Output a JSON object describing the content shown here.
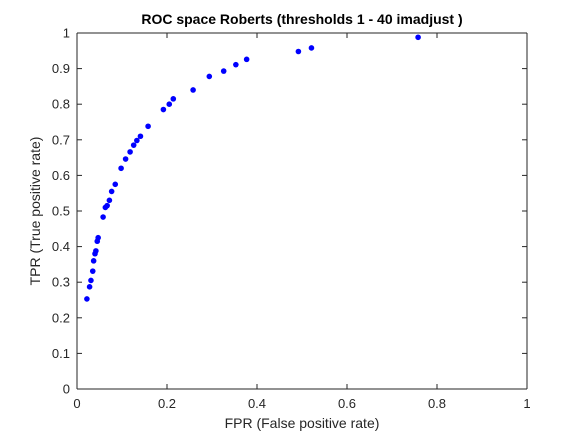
{
  "chart_data": {
    "type": "scatter",
    "title": "ROC space Roberts (thresholds 1 - 40  imadjust )",
    "xlabel": "FPR (False positive rate)",
    "ylabel": "TPR (True positive rate)",
    "xlim": [
      0,
      1
    ],
    "ylim": [
      0,
      1
    ],
    "xticks": [
      "0",
      "0.2",
      "0.4",
      "0.6",
      "0.8",
      "1"
    ],
    "yticks": [
      "0",
      "0.1",
      "0.2",
      "0.3",
      "0.4",
      "0.5",
      "0.6",
      "0.7",
      "0.8",
      "0.9",
      "1"
    ],
    "grid": false,
    "marker_color": "#0000ff",
    "series": [
      {
        "x": [
          0.022,
          0.028,
          0.031,
          0.035,
          0.037,
          0.04,
          0.042,
          0.045,
          0.047,
          0.058,
          0.063,
          0.067,
          0.072,
          0.077,
          0.085,
          0.098,
          0.108,
          0.118,
          0.126,
          0.133,
          0.141,
          0.158,
          0.192,
          0.205,
          0.214,
          0.258,
          0.294,
          0.326,
          0.353,
          0.377,
          0.492,
          0.521,
          0.758
        ],
        "y": [
          0.253,
          0.287,
          0.305,
          0.331,
          0.36,
          0.38,
          0.388,
          0.415,
          0.425,
          0.483,
          0.51,
          0.515,
          0.53,
          0.555,
          0.575,
          0.62,
          0.646,
          0.666,
          0.685,
          0.698,
          0.71,
          0.738,
          0.785,
          0.8,
          0.815,
          0.84,
          0.878,
          0.893,
          0.911,
          0.926,
          0.948,
          0.958,
          0.988
        ]
      }
    ]
  }
}
